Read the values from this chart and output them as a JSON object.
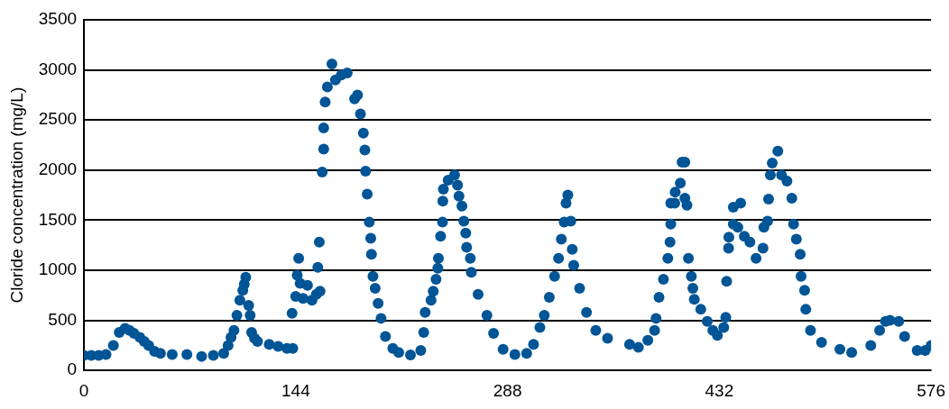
{
  "chart_data": {
    "type": "scatter",
    "ylabel": "Cloride concentration (mg/L)",
    "xlim": [
      0,
      576
    ],
    "xticks": [
      0,
      144,
      288,
      432,
      576
    ],
    "ylim": [
      0,
      3500
    ],
    "yticks": [
      0,
      500,
      1000,
      1500,
      2000,
      2500,
      3000,
      3500
    ],
    "grid": "y",
    "legend": false,
    "marker": "circle",
    "series": [
      {
        "color": "#005596",
        "x": [
          0,
          5,
          10,
          15,
          20,
          24,
          28,
          31,
          34,
          38,
          41,
          44,
          48,
          52,
          60,
          70,
          80,
          88,
          95,
          98,
          100,
          102,
          104,
          106,
          108,
          109,
          110,
          112,
          113,
          114,
          116,
          118,
          126,
          132,
          138,
          142,
          141.5,
          144,
          145,
          146,
          147,
          149,
          152,
          155,
          158,
          159,
          160,
          160.5,
          162,
          163,
          163,
          164,
          165.5,
          168.6,
          171,
          175,
          179,
          184,
          186,
          188,
          190,
          191,
          191.5,
          192.6,
          194,
          195,
          195.5,
          196.5,
          198,
          200,
          202,
          205,
          210,
          214,
          222,
          229,
          231,
          232,
          236,
          237.5,
          239.4,
          240.6,
          241,
          242.5,
          243.8,
          244,
          244.4,
          247.6,
          252,
          254,
          255,
          257,
          258.3,
          259.6,
          260.2,
          262.7,
          263.4,
          268,
          274,
          278.5,
          285,
          293,
          301,
          305.7,
          310,
          313,
          316.4,
          320,
          322.7,
          324.6,
          326.5,
          327.8,
          329,
          331,
          332,
          333,
          337,
          341.7,
          348,
          356,
          371,
          377,
          383.4,
          388,
          389,
          391,
          394,
          397,
          398.5,
          399,
          399,
          401.7,
          402,
          405.5,
          406.7,
          408.6,
          408.6,
          410,
          411,
          413,
          414,
          415,
          419.4,
          423.8,
          427.6,
          430.7,
          435,
          436.4,
          437,
          438.3,
          438.5,
          441.5,
          441.5,
          444.6,
          446.5,
          449,
          452.8,
          457,
          461.7,
          462.3,
          464.8,
          465.5,
          466.7,
          468,
          471.8,
          474.3,
          478,
          481.3,
          482.5,
          484.4,
          487,
          487.6,
          490,
          490.8,
          494,
          501.5,
          514,
          522,
          535,
          541,
          545,
          548,
          554,
          558,
          566.5,
          572,
          576
        ],
        "values": [
          150,
          150,
          150,
          160,
          250,
          380,
          420,
          400,
          370,
          330,
          290,
          250,
          190,
          170,
          160,
          160,
          140,
          150,
          170,
          250,
          330,
          400,
          550,
          700,
          800,
          860,
          930,
          650,
          550,
          380,
          320,
          290,
          260,
          240,
          220,
          220,
          570,
          740,
          950,
          1120,
          870,
          720,
          850,
          700,
          760,
          1030,
          1280,
          790,
          1980,
          2210,
          2420,
          2680,
          2830,
          3060,
          2900,
          2950,
          2970,
          2710,
          2750,
          2560,
          2370,
          2200,
          1990,
          1760,
          1480,
          1320,
          1160,
          940,
          820,
          670,
          520,
          340,
          220,
          180,
          155,
          200,
          380,
          580,
          700,
          790,
          910,
          1020,
          1120,
          1340,
          1480,
          1690,
          1810,
          1900,
          1950,
          1850,
          1740,
          1640,
          1490,
          1370,
          1230,
          1120,
          980,
          760,
          550,
          370,
          210,
          160,
          170,
          260,
          430,
          550,
          730,
          940,
          1120,
          1310,
          1480,
          1670,
          1750,
          1490,
          1210,
          1050,
          820,
          580,
          400,
          320,
          260,
          230,
          300,
          400,
          520,
          730,
          910,
          1120,
          1280,
          1460,
          1670,
          1670,
          1780,
          1870,
          2080,
          2080,
          1720,
          1650,
          1120,
          940,
          820,
          710,
          610,
          490,
          400,
          350,
          430,
          530,
          890,
          1220,
          1330,
          1630,
          1460,
          1430,
          1670,
          1340,
          1280,
          1120,
          1220,
          1430,
          1490,
          1710,
          1950,
          2070,
          2190,
          1950,
          1890,
          1720,
          1460,
          1310,
          1160,
          940,
          800,
          610,
          400,
          280,
          210,
          180,
          250,
          400,
          490,
          500,
          490,
          340,
          200,
          200,
          250
        ]
      }
    ]
  }
}
